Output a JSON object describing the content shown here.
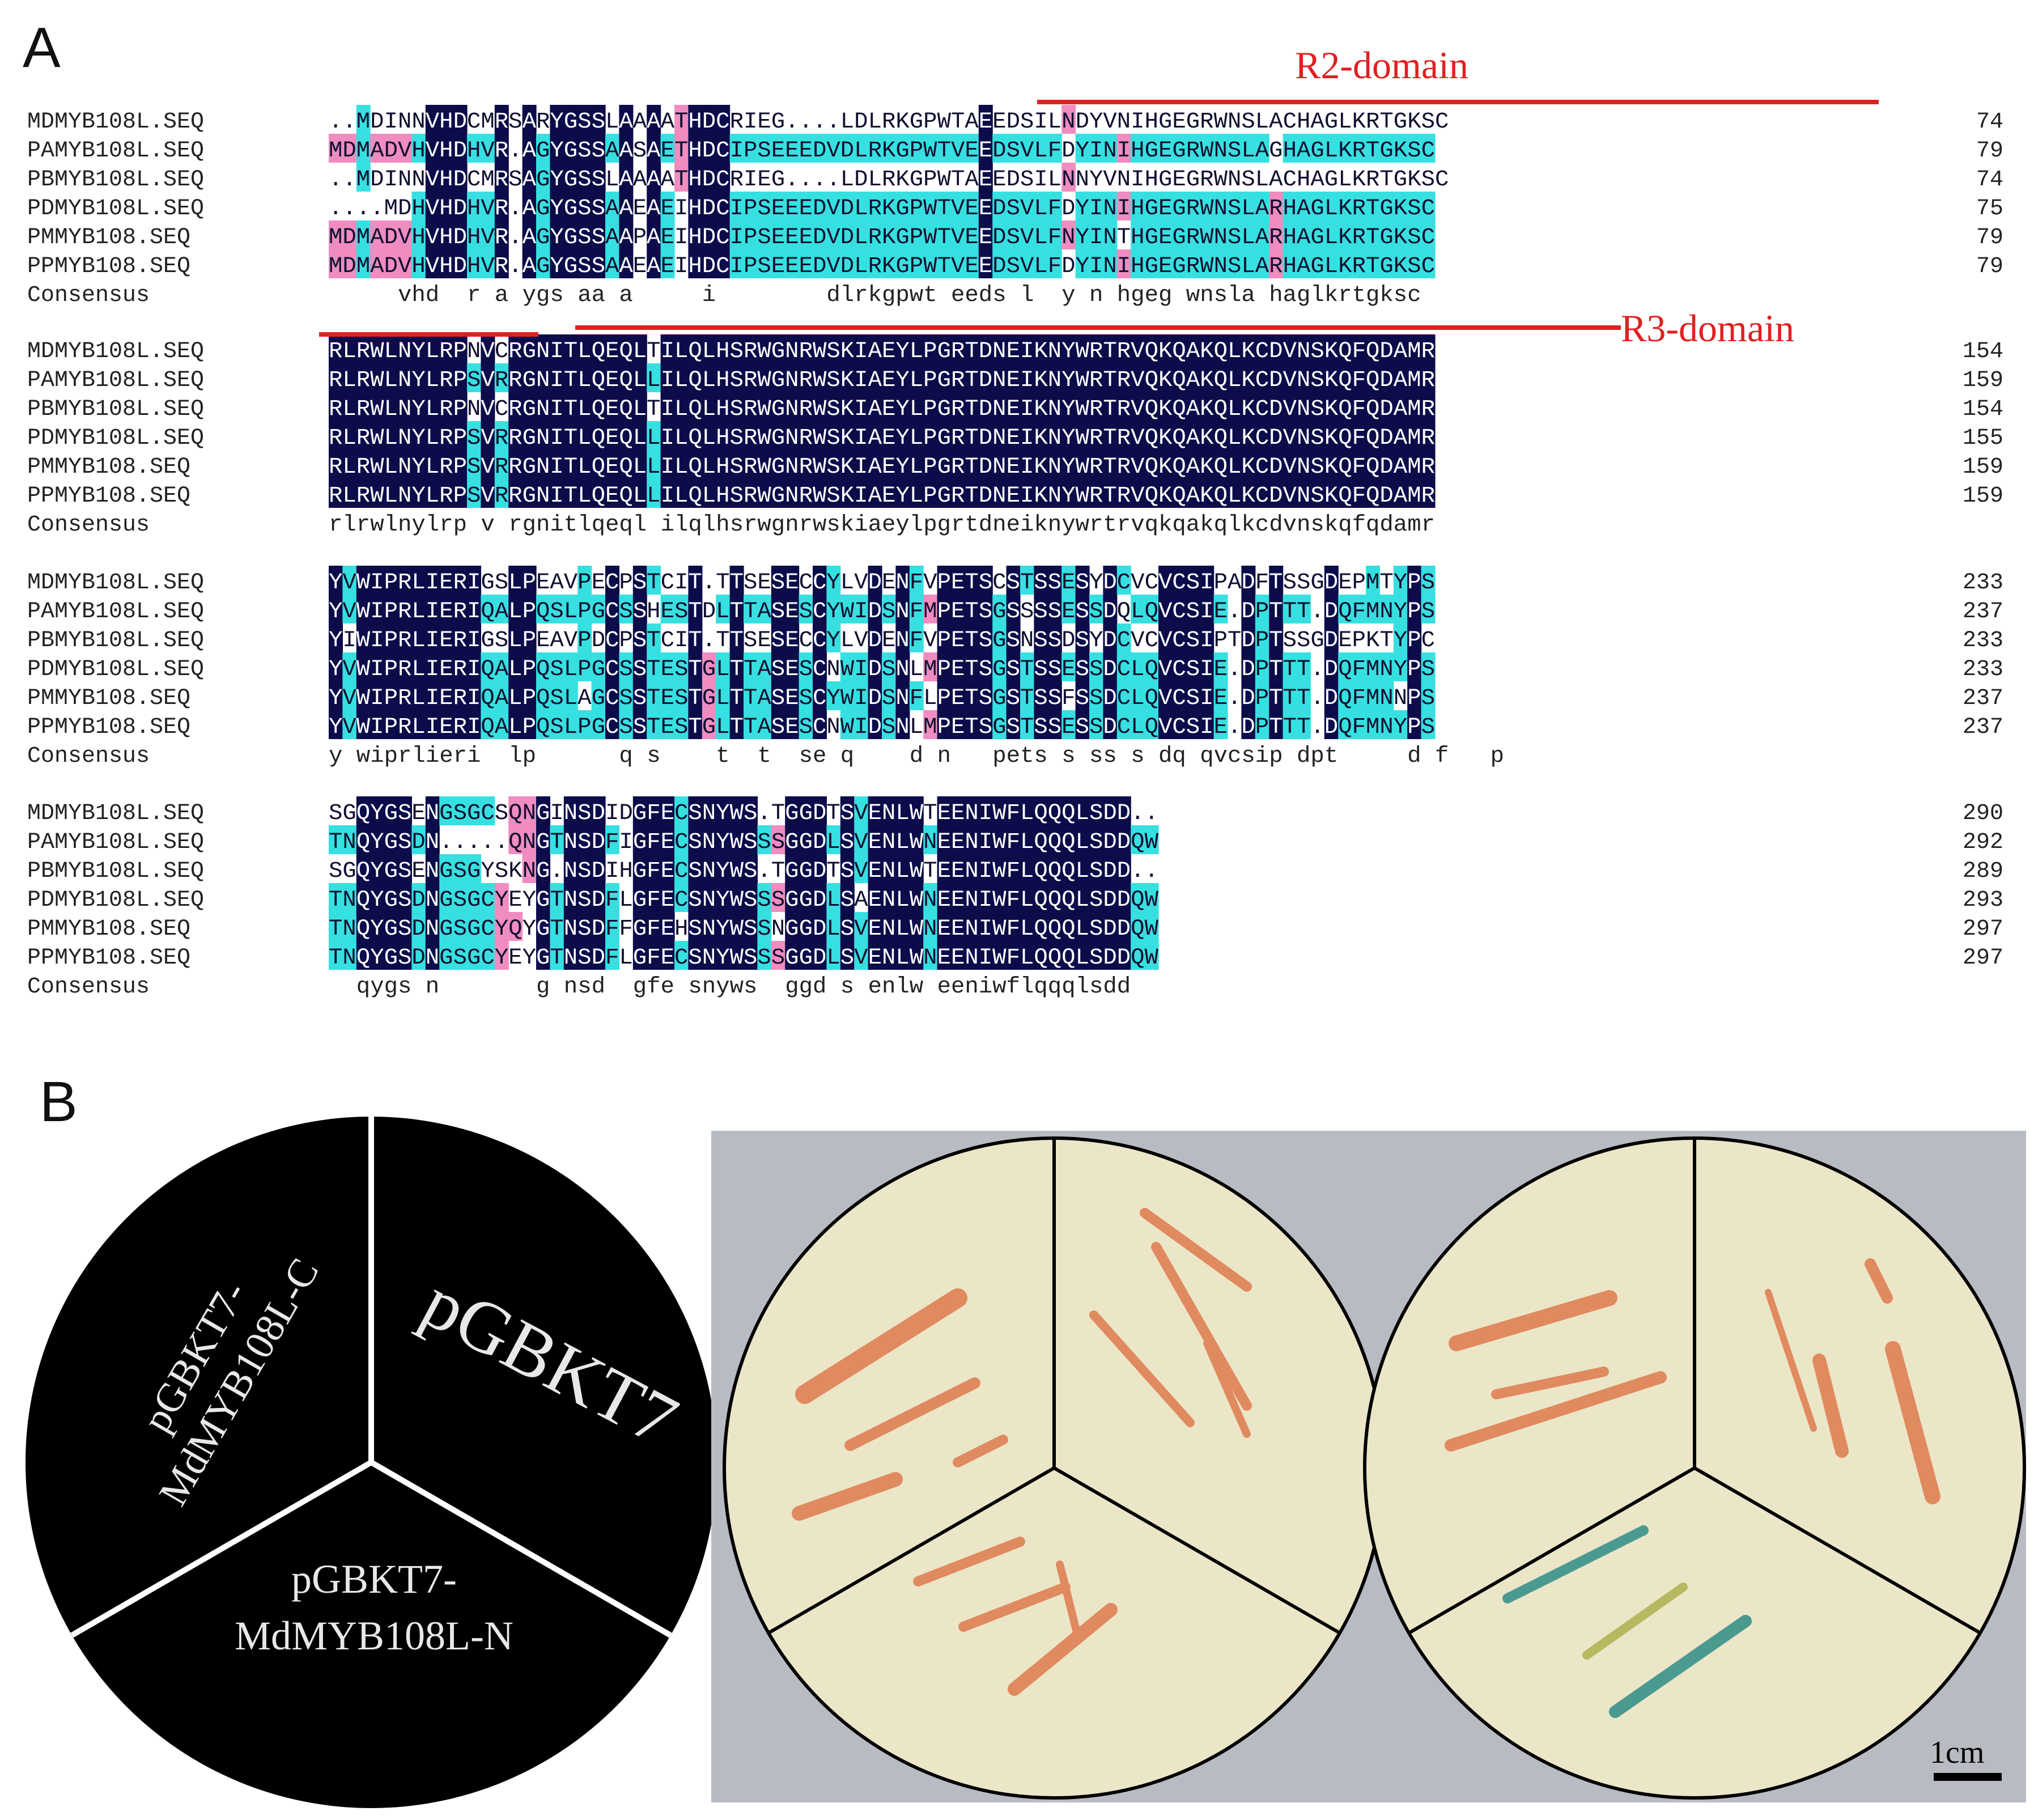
{
  "panels": {
    "a": "A",
    "b": "B"
  },
  "alignment": {
    "blocks": [
      {
        "rows": [
          {
            "name": "MDMYB108L.SEQ",
            "seq": "..MDINNVHDCMRSARYGSSLAAAATHDCRIEG....LDLRKGPWTAEEDSILNDYVNIHGEGRWNSLACHAGLKRTGKSC",
            "num": "74"
          },
          {
            "name": "PAMYB108L.SEQ",
            "seq": "MDMADVHVHDHVR.AGYGSSAASAETHDCIPSEEEDVDLRKGPWTVEEDSVLFDYINIHGEGRWNSLAGHAGLKRTGKSC",
            "num": "79"
          },
          {
            "name": "PBMYB108L.SEQ",
            "seq": "..MDINNVHDCMRSAGYGSSLAAAATHDCRIEG....LDLRKGPWTAEEDSILNNYVNIHGEGRWNSLACHAGLKRTGKSC",
            "num": "74"
          },
          {
            "name": "PDMYB108L.SEQ",
            "seq": "....MDHVHDHVR.AGYGSSAAEAEIHDCIPSEEEDVDLRKGPWTVEEDSVLFDYINIHGEGRWNSLARHAGLKRTGKSC",
            "num": "75"
          },
          {
            "name": "PMMYB108.SEQ",
            "seq": "MDMADVHVHDHVR.AGYGSSAAPAEIHDCIPSEEEDVDLRKGPWTVEEDSVLFNYINTHGEGRWNSLARHAGLKRTGKSC",
            "num": "79"
          },
          {
            "name": "PPMYB108.SEQ",
            "seq": "MDMADVHVHDHVR.AGYGSSAAEAEIHDCIPSEEEDVDLRKGPWTVEEDSVLFDYINIHGEGRWNSLARHAGLKRTGKSC",
            "num": "79"
          }
        ],
        "consensus": {
          "name": "Consensus",
          "seq": "     vhd  r a ygs aa a     i        dlrkgpwt eeds l  y n hgeg wnsla haglkrtgksc"
        }
      },
      {
        "rows": [
          {
            "name": "MDMYB108L.SEQ",
            "seq": "RLRWLNYLRPNVCRGNITLQEQLTILQLHSRWGNRWSKIAEYLPGRTDNEIKNYWRTRVQKQAKQLKCDVNSKQFQDAMR",
            "num": "154"
          },
          {
            "name": "PAMYB108L.SEQ",
            "seq": "RLRWLNYLRPSVRRGNITLQEQLLILQLHSRWGNRWSKIAEYLPGRTDNEIKNYWRTRVQKQAKQLKCDVNSKQFQDAMR",
            "num": "159"
          },
          {
            "name": "PBMYB108L.SEQ",
            "seq": "RLRWLNYLRPNVCRGNITLQEQLTILQLHSRWGNRWSKIAEYLPGRTDNEIKNYWRTRVQKQAKQLKCDVNSKQFQDAMR",
            "num": "154"
          },
          {
            "name": "PDMYB108L.SEQ",
            "seq": "RLRWLNYLRPSVRRGNITLQEQLLILQLHSRWGNRWSKIAEYLPGRTDNEIKNYWRTRVQKQAKQLKCDVNSKQFQDAMR",
            "num": "155"
          },
          {
            "name": "PMMYB108.SEQ",
            "seq": "RLRWLNYLRPSVRRGNITLQEQLLILQLHSRWGNRWSKIAEYLPGRTDNEIKNYWRTRVQKQAKQLKCDVNSKQFQDAMR",
            "num": "159"
          },
          {
            "name": "PPMYB108.SEQ",
            "seq": "RLRWLNYLRPSVRRGNITLQEQLLILQLHSRWGNRWSKIAEYLPGRTDNEIKNYWRTRVQKQAKQLKCDVNSKQFQDAMR",
            "num": "159"
          }
        ],
        "consensus": {
          "name": "Consensus",
          "seq": "rlrwlnylrp v rgnitlqeql ilqlhsrwgnrwskiaeylpgrtdneiknywrtrvqkqakqlkcdvnskqfqdamr"
        }
      },
      {
        "rows": [
          {
            "name": "MDMYB108L.SEQ",
            "seq": "YVWIPRLIERIGSLPEAVPECPSTCIT.TTSESECCYLVDENFVPETSCSTSSESYDCVCVCSIPADFTSSGDEPMTYPS",
            "num": "233"
          },
          {
            "name": "PAMYB108L.SEQ",
            "seq": "YVWIPRLIERIQALPQSLPGCSSHESTDLTTASESCYWIDSNFMPETSGSSSSESSDQLQVCSIE.DPTTT.DQFMNYPS",
            "num": "237"
          },
          {
            "name": "PBMYB108L.SEQ",
            "seq": "YIWIPRLIERIGSLPEAVPDCPSTCIT.TTSESECCYLVDENFVPETSGSNSSDSYDCVCVCSIPTDPTSSGDEPKTYPC",
            "num": "233"
          },
          {
            "name": "PDMYB108L.SEQ",
            "seq": "YVWIPRLIERIQALPQSLPGCSSTESTGLTTASESCNWIDSNLMPETSGSTSSESSDCLQVCSIE.DPTTT.DQFMNYPS",
            "num": "233"
          },
          {
            "name": "PMMYB108.SEQ",
            "seq": "YVWIPRLIERIQALPQSLAGCSSTESTGLTTASESCYWIDSNFLPETSGSTSSFSSDCLQVCSIE.DPTTT.DQFMNNPS",
            "num": "237"
          },
          {
            "name": "PPMYB108.SEQ",
            "seq": "YVWIPRLIERIQALPQSLPGCSSTESTGLTTASESCNWIDSNLMPETSGSTSSESSDCLQVCSIE.DPTTT.DQFMNYPS",
            "num": "237"
          }
        ],
        "consensus": {
          "name": "Consensus",
          "seq": "y wiprlieri  lp      q s    t  t  se q    d n   pets s ss s dq qvcsip dpt     d f   p"
        }
      },
      {
        "rows": [
          {
            "name": "MDMYB108L.SEQ",
            "seq": "SGQYGSENGSGCSQNGINSDIDGFECSNYWS.TGGDTSVENLWTEENIWFLQQQLSDD..",
            "num": "290"
          },
          {
            "name": "PAMYB108L.SEQ",
            "seq": "TNQYGSDN.....QNGTNSDFIGFECSNYWSSSGGDLSVENLWNEENIWFLQQQLSDDQW",
            "num": "292"
          },
          {
            "name": "PBMYB108L.SEQ",
            "seq": "SGQYGSENGSGYSKNG.NSDIHGFECSNYWS.TGGDTSVENLWTEENIWFLQQQLSDD..",
            "num": "289"
          },
          {
            "name": "PDMYB108L.SEQ",
            "seq": "TNQYGSDNGSGCYEYGTNSDFLGFECSNYWSSSGGDLSAENLWNEENIWFLQQQLSDDQW",
            "num": "293"
          },
          {
            "name": "PMMYB108.SEQ",
            "seq": "TNQYGSDNGSGCYQYGTNSDFFGFEHSNYWSSNGGDLSVENLWNEENIWFLQQQLSDDQW",
            "num": "297"
          },
          {
            "name": "PPMYB108.SEQ",
            "seq": "TNQYGSDNGSGCYEYGTNSDFLGFECSNYWSSSGGDLSVENLWNEENIWFLQQQLSDDQW",
            "num": "297"
          }
        ],
        "consensus": {
          "name": "Consensus",
          "seq": "  qygs n       g nsd  gfe snyws  ggd s enlw eeniwflqqqlsdd"
        }
      }
    ],
    "domains": [
      {
        "label": "R2-domain"
      },
      {
        "label": "R3-domain"
      }
    ],
    "colors": {
      "identical": "#0c0c4a",
      "high": "#37e0e0",
      "mid": "#f08cc0",
      "domain_line": "#e02020"
    }
  },
  "plates": {
    "schematic_labels": {
      "c_line1": "pGBKT7-",
      "c_line2": "MdMYB108L-C",
      "empty": "pGBKT7",
      "n_line1": "pGBKT7-",
      "n_line2": "MdMYB108L-N"
    },
    "scale_bar": "1cm",
    "colors": {
      "agar": "#ece6c8",
      "colony": "#e08a60",
      "blue_colony": "#4a9a90",
      "yellow_colony": "#b8b860",
      "backdrop": "#b8bcc2"
    }
  }
}
